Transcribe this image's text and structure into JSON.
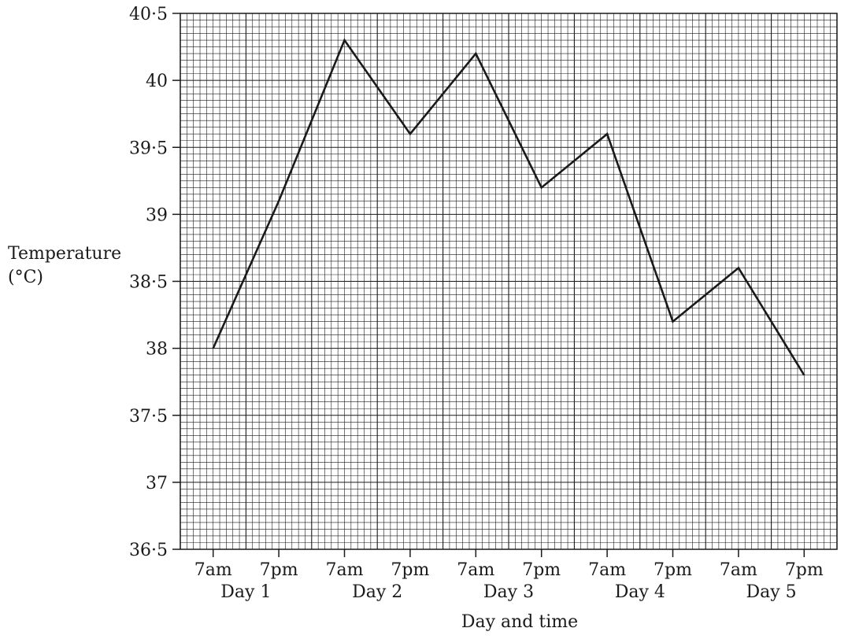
{
  "chart_data": {
    "type": "line",
    "xlabel": "Day and time",
    "ylabel_line1": "Temperature",
    "ylabel_line2": "(°C)",
    "ylim": [
      36.5,
      40.5
    ],
    "yticks": [
      "36·5",
      "37",
      "37·5",
      "38",
      "38·5",
      "39",
      "39·5",
      "40",
      "40·5"
    ],
    "ytick_values": [
      36.5,
      37,
      37.5,
      38,
      38.5,
      39,
      39.5,
      40,
      40.5
    ],
    "time_labels": [
      "7am",
      "7pm",
      "7am",
      "7pm",
      "7am",
      "7pm",
      "7am",
      "7pm",
      "7am",
      "7pm"
    ],
    "day_labels": [
      "Day 1",
      "Day 2",
      "Day 3",
      "Day 4",
      "Day 5"
    ],
    "x": [
      "Day 1 7am",
      "Day 1 7pm",
      "Day 2 7am",
      "Day 2 7pm",
      "Day 3 7am",
      "Day 3 7pm",
      "Day 4 7am",
      "Day 4 7pm",
      "Day 5 7am",
      "Day 5 7pm"
    ],
    "values": [
      38.0,
      39.1,
      40.3,
      39.6,
      40.2,
      39.2,
      39.6,
      38.2,
      38.6,
      37.8
    ],
    "grid": true
  }
}
